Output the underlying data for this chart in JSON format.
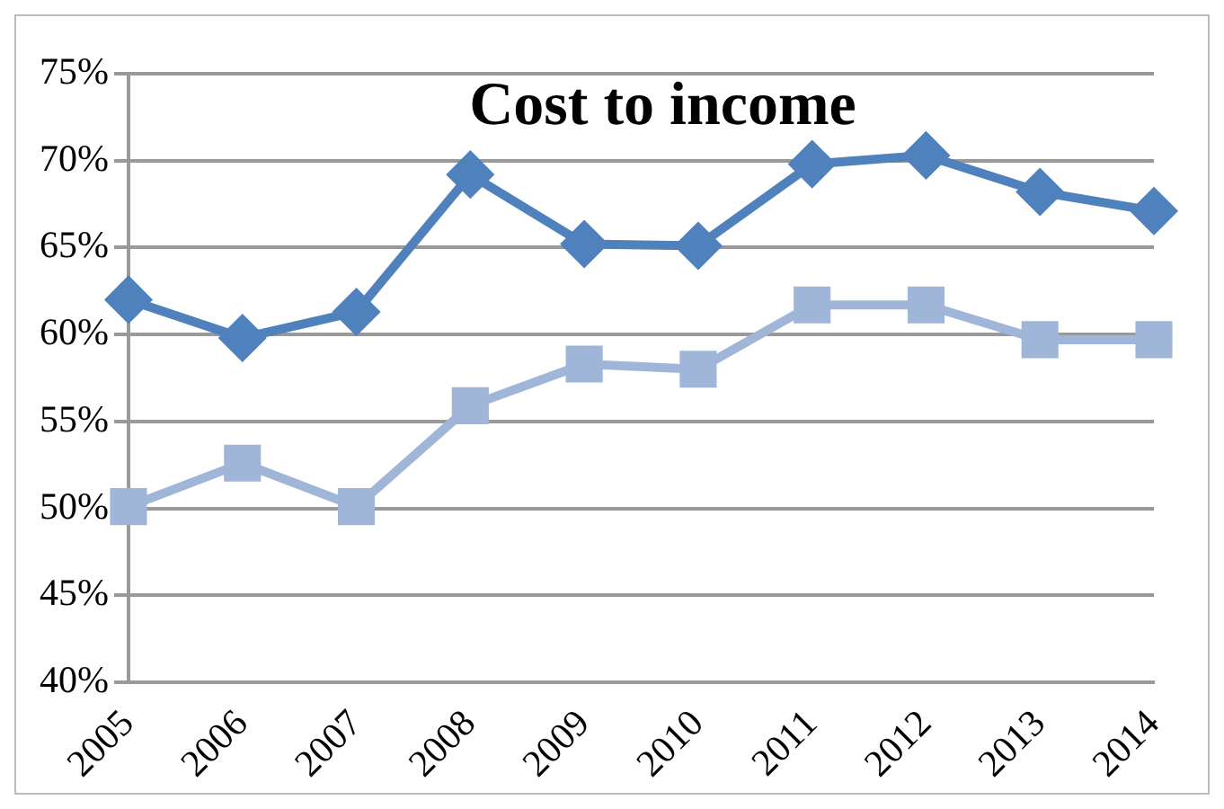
{
  "chart_data": {
    "type": "line",
    "title": "Cost to income",
    "categories": [
      "2005",
      "2006",
      "2007",
      "2008",
      "2009",
      "2010",
      "2011",
      "2012",
      "2013",
      "2014"
    ],
    "series": [
      {
        "color": "#4f81bd",
        "marker": "diamond",
        "values": [
          62.0,
          59.8,
          61.3,
          69.2,
          65.2,
          65.1,
          69.8,
          70.3,
          68.2,
          67.1
        ]
      },
      {
        "color": "#a0b6d9",
        "marker": "square",
        "values": [
          50.1,
          52.6,
          50.1,
          55.9,
          58.3,
          58.0,
          61.7,
          61.7,
          59.7,
          59.7
        ]
      }
    ],
    "ylim": [
      40,
      75
    ],
    "yticks": [
      {
        "value": 40,
        "label": "40%"
      },
      {
        "value": 45,
        "label": "45%"
      },
      {
        "value": 50,
        "label": "50%"
      },
      {
        "value": 55,
        "label": "55%"
      },
      {
        "value": 60,
        "label": "60%"
      },
      {
        "value": 65,
        "label": "65%"
      },
      {
        "value": 70,
        "label": "70%"
      },
      {
        "value": 75,
        "label": "75%"
      }
    ],
    "grid": "y",
    "legend": false
  }
}
